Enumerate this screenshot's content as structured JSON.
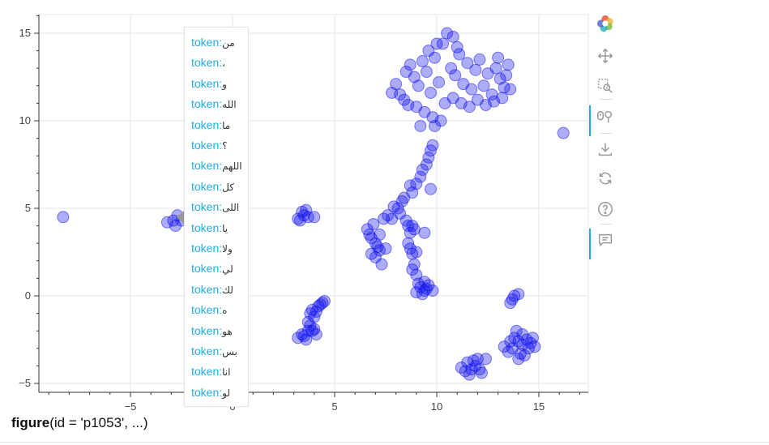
{
  "chart_data": {
    "type": "scatter",
    "title": "",
    "xlabel": "",
    "ylabel": "",
    "xlim": [
      -9.5,
      17.5
    ],
    "ylim": [
      -5.5,
      16
    ],
    "x_ticks": [
      -5,
      0,
      5,
      10,
      15
    ],
    "y_ticks": [
      -5,
      0,
      5,
      10,
      15
    ],
    "grid": true,
    "marker_color": "#1010ee",
    "marker_alpha": 0.35,
    "series": [
      {
        "points": [
          [
            -8.3,
            4.5
          ],
          [
            16.2,
            9.3
          ],
          [
            -3.2,
            4.2
          ],
          [
            -2.9,
            4.3
          ],
          [
            -2.8,
            4.0
          ],
          [
            -2.7,
            4.6
          ],
          [
            -2.5,
            4.3
          ],
          [
            3.2,
            4.4
          ],
          [
            3.4,
            4.8
          ],
          [
            3.5,
            4.6
          ],
          [
            3.3,
            4.3
          ],
          [
            3.7,
            4.5
          ],
          [
            4.0,
            4.5
          ],
          [
            3.6,
            4.9
          ],
          [
            3.2,
            -2.4
          ],
          [
            3.4,
            -2.2
          ],
          [
            3.6,
            -2.5
          ],
          [
            3.7,
            -1.5
          ],
          [
            3.8,
            -1.0
          ],
          [
            3.9,
            -0.8
          ],
          [
            4.0,
            -1.2
          ],
          [
            4.1,
            -0.9
          ],
          [
            4.2,
            -0.6
          ],
          [
            4.3,
            -0.5
          ],
          [
            4.4,
            -0.4
          ],
          [
            4.5,
            -0.3
          ],
          [
            3.9,
            -2.0
          ],
          [
            4.1,
            -2.2
          ],
          [
            3.8,
            -1.7
          ],
          [
            4.0,
            -1.9
          ],
          [
            3.7,
            -2.0
          ],
          [
            3.5,
            -2.3
          ],
          [
            6.6,
            3.8
          ],
          [
            6.7,
            3.5
          ],
          [
            6.8,
            3.3
          ],
          [
            6.9,
            4.1
          ],
          [
            7.0,
            3.0
          ],
          [
            7.1,
            2.8
          ],
          [
            7.2,
            3.5
          ],
          [
            7.4,
            4.4
          ],
          [
            7.5,
            2.7
          ],
          [
            7.6,
            4.6
          ],
          [
            7.8,
            4.4
          ],
          [
            7.9,
            5.1
          ],
          [
            8.1,
            5.0
          ],
          [
            8.2,
            4.7
          ],
          [
            8.3,
            5.4
          ],
          [
            8.4,
            5.6
          ],
          [
            8.5,
            4.3
          ],
          [
            8.6,
            4.0
          ],
          [
            8.7,
            3.6
          ],
          [
            8.8,
            4.0
          ],
          [
            8.9,
            3.8
          ],
          [
            8.6,
            3.0
          ],
          [
            8.7,
            2.7
          ],
          [
            8.8,
            2.4
          ],
          [
            9.0,
            2.5
          ],
          [
            8.9,
            1.8
          ],
          [
            8.8,
            1.5
          ],
          [
            9.0,
            1.2
          ],
          [
            8.7,
            6.3
          ],
          [
            8.8,
            5.9
          ],
          [
            9.0,
            6.4
          ],
          [
            9.2,
            6.8
          ],
          [
            9.3,
            7.2
          ],
          [
            9.5,
            7.5
          ],
          [
            9.6,
            7.9
          ],
          [
            9.7,
            8.3
          ],
          [
            9.8,
            8.6
          ],
          [
            9.7,
            6.1
          ],
          [
            9.4,
            3.6
          ],
          [
            6.8,
            2.4
          ],
          [
            7.0,
            2.2
          ],
          [
            7.3,
            1.8
          ],
          [
            7.2,
            2.6
          ],
          [
            9.0,
            0.2
          ],
          [
            9.2,
            0.5
          ],
          [
            9.4,
            0.3
          ],
          [
            9.6,
            0.6
          ],
          [
            9.3,
            0.1
          ],
          [
            9.5,
            0.4
          ],
          [
            9.8,
            0.3
          ],
          [
            9.1,
            0.7
          ],
          [
            9.4,
            0.8
          ],
          [
            8.5,
            12.8
          ],
          [
            8.7,
            13.2
          ],
          [
            8.9,
            12.5
          ],
          [
            9.1,
            12.0
          ],
          [
            9.3,
            13.4
          ],
          [
            9.5,
            12.8
          ],
          [
            9.7,
            11.6
          ],
          [
            9.9,
            13.6
          ],
          [
            10.1,
            12.2
          ],
          [
            10.3,
            14.4
          ],
          [
            10.5,
            15.0
          ],
          [
            10.7,
            13.0
          ],
          [
            10.9,
            12.6
          ],
          [
            11.1,
            13.8
          ],
          [
            11.3,
            12.1
          ],
          [
            11.5,
            13.3
          ],
          [
            11.7,
            11.8
          ],
          [
            11.9,
            12.9
          ],
          [
            12.1,
            13.5
          ],
          [
            12.3,
            12.0
          ],
          [
            12.5,
            12.7
          ],
          [
            12.7,
            11.5
          ],
          [
            12.9,
            13.0
          ],
          [
            13.1,
            12.4
          ],
          [
            13.3,
            11.9
          ],
          [
            13.5,
            13.2
          ],
          [
            8.2,
            11.5
          ],
          [
            8.4,
            11.2
          ],
          [
            8.6,
            10.9
          ],
          [
            9.0,
            10.8
          ],
          [
            9.4,
            10.5
          ],
          [
            9.8,
            10.2
          ],
          [
            10.2,
            10.0
          ],
          [
            9.9,
            9.7
          ],
          [
            10.4,
            11.0
          ],
          [
            10.8,
            11.3
          ],
          [
            11.2,
            11.0
          ],
          [
            11.6,
            10.8
          ],
          [
            12.0,
            11.2
          ],
          [
            12.4,
            10.9
          ],
          [
            12.8,
            11.1
          ],
          [
            13.2,
            11.3
          ],
          [
            13.6,
            11.8
          ],
          [
            13.4,
            12.6
          ],
          [
            8.0,
            12.1
          ],
          [
            7.8,
            11.6
          ],
          [
            9.6,
            14.0
          ],
          [
            10.0,
            14.4
          ],
          [
            10.8,
            14.8
          ],
          [
            11.0,
            14.2
          ],
          [
            9.2,
            9.7
          ],
          [
            13.0,
            13.6
          ],
          [
            13.6,
            -0.4
          ],
          [
            13.8,
            0.0
          ],
          [
            14.0,
            0.1
          ],
          [
            13.7,
            -0.2
          ],
          [
            13.3,
            -2.9
          ],
          [
            13.5,
            -3.2
          ],
          [
            13.7,
            -3.0
          ],
          [
            13.8,
            -2.4
          ],
          [
            13.9,
            -2.0
          ],
          [
            14.0,
            -2.6
          ],
          [
            14.1,
            -3.3
          ],
          [
            14.2,
            -2.8
          ],
          [
            14.3,
            -3.4
          ],
          [
            14.4,
            -2.5
          ],
          [
            14.5,
            -3.0
          ],
          [
            14.6,
            -2.7
          ],
          [
            14.7,
            -2.4
          ],
          [
            14.8,
            -2.9
          ],
          [
            14.0,
            -3.6
          ],
          [
            13.6,
            -2.6
          ],
          [
            14.2,
            -2.2
          ],
          [
            11.2,
            -4.1
          ],
          [
            11.4,
            -4.3
          ],
          [
            11.5,
            -3.8
          ],
          [
            11.6,
            -4.5
          ],
          [
            11.8,
            -3.7
          ],
          [
            11.9,
            -4.0
          ],
          [
            12.0,
            -3.6
          ],
          [
            12.1,
            -4.2
          ],
          [
            12.2,
            -4.4
          ],
          [
            11.7,
            -4.2
          ],
          [
            12.4,
            -3.6
          ]
        ]
      }
    ]
  },
  "tooltip": {
    "key_label": "token",
    "items": [
      "من",
      "،",
      "و",
      "الله",
      "ما",
      "؟",
      "اللهم",
      "كل",
      "اللى",
      "يا",
      "ولا",
      "لي",
      "لك",
      "ه",
      "هو",
      "بس",
      "انا",
      "لو"
    ]
  },
  "toolbar": {
    "tools": [
      {
        "name": "bokeh-logo-icon",
        "interactable": false
      },
      {
        "name": "pan-tool-icon",
        "interactable": true
      },
      {
        "name": "box-zoom-tool-icon",
        "interactable": true
      },
      {
        "name": "wheel-zoom-tool-icon",
        "interactable": true,
        "active": true
      },
      {
        "name": "save-tool-icon",
        "interactable": true
      },
      {
        "name": "reset-tool-icon",
        "interactable": true
      },
      {
        "name": "help-tool-icon",
        "interactable": true
      },
      {
        "name": "hover-tool-icon",
        "interactable": true,
        "active": true
      }
    ],
    "accent_color": "#26aae1"
  },
  "caption": {
    "bold": "figure",
    "rest": "(id = 'p1053', ...)"
  }
}
